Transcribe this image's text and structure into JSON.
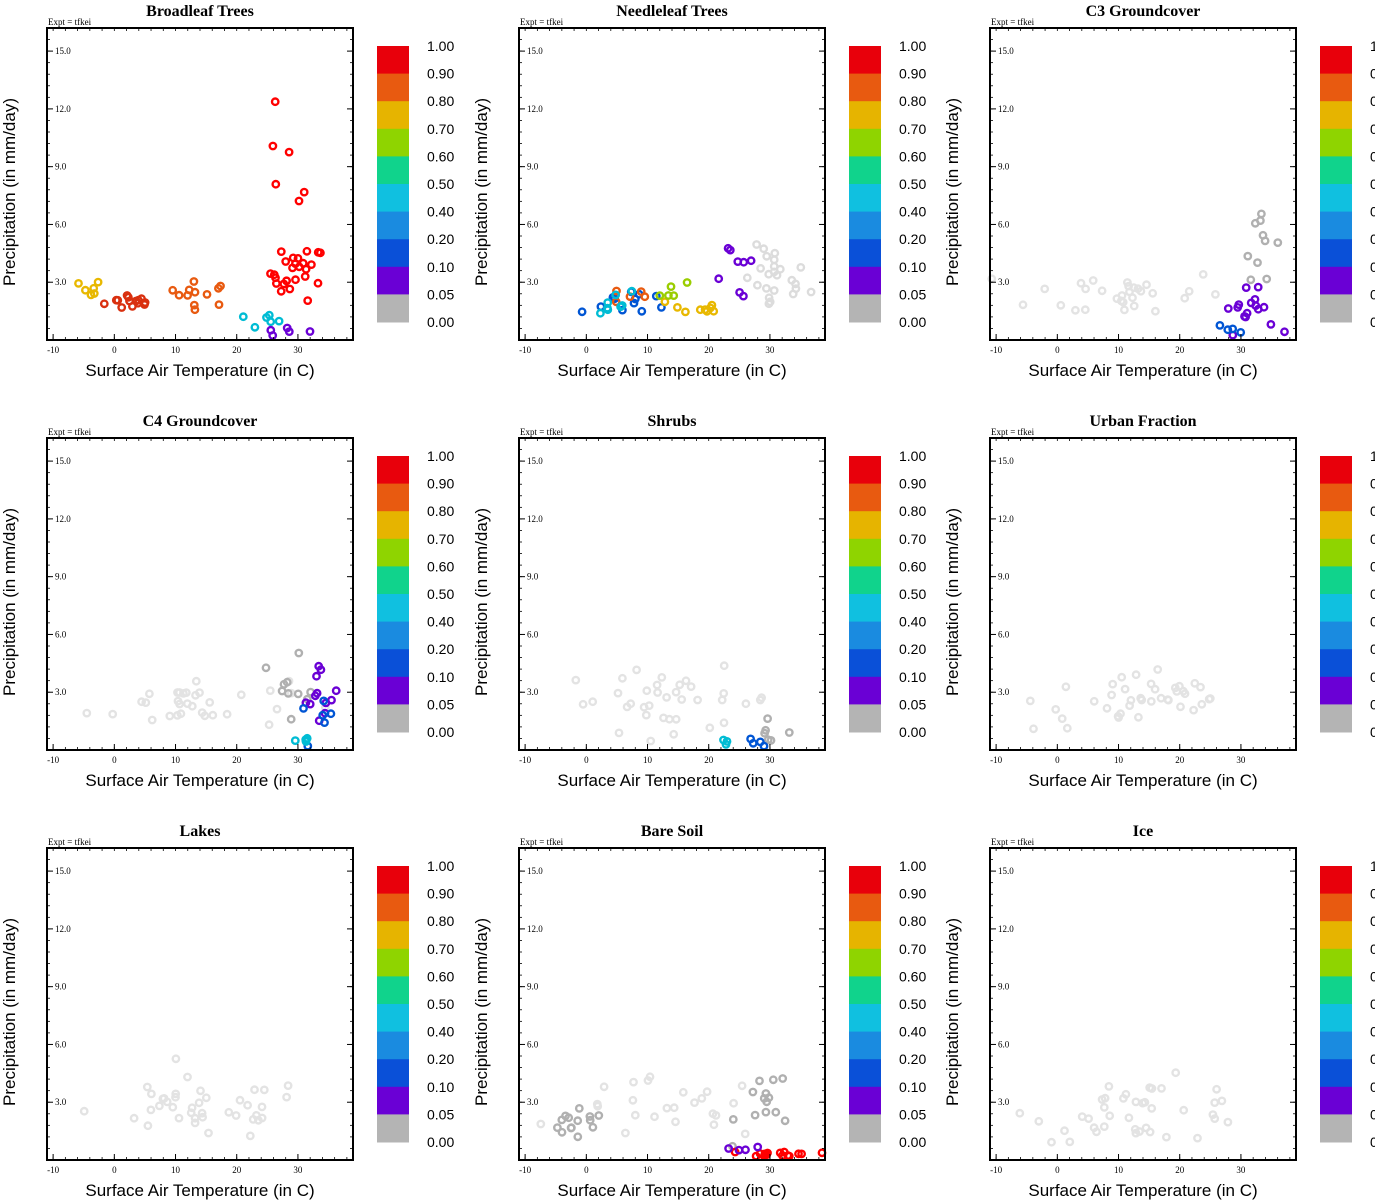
{
  "chart_data": [
    {
      "type": "scatter",
      "title": "Broadleaf Trees",
      "expt": "Expt = tfkei",
      "xlabel": "Surface Air Temperature (in C)",
      "ylabel": "Precipitation (in mm/day)",
      "xlim": [
        -11,
        39
      ],
      "ylim": [
        0,
        16.2
      ],
      "xticks": [
        "-10",
        "0",
        "10",
        "20",
        "30"
      ],
      "yticks": [
        "3.0",
        "6.0",
        "9.0",
        "12.0",
        "15.0"
      ],
      "clusters": [
        {
          "color": "#d9300f",
          "count": 14,
          "center": [
            3,
            2.0
          ],
          "spread": [
            5,
            0.5
          ]
        },
        {
          "color": "#e85a10",
          "count": 12,
          "center": [
            14,
            2.4
          ],
          "spread": [
            6,
            0.7
          ]
        },
        {
          "color": "#ff0000",
          "count": 26,
          "center": [
            30,
            3.5
          ],
          "spread": [
            5,
            1.6
          ]
        },
        {
          "color": "#e8b800",
          "count": 6,
          "center": [
            -4,
            2.6
          ],
          "spread": [
            2,
            0.6
          ]
        },
        {
          "color": "#00bcd4",
          "count": 6,
          "center": [
            23,
            1.0
          ],
          "spread": [
            6,
            0.5
          ]
        },
        {
          "color": "#6a00d5",
          "count": 5,
          "center": [
            28,
            0.4
          ],
          "spread": [
            5,
            0.3
          ]
        },
        {
          "color": "#ff0000",
          "count": 6,
          "center": [
            28,
            9
          ],
          "spread": [
            6,
            3
          ]
        }
      ]
    },
    {
      "type": "scatter",
      "title": "Needleleaf Trees",
      "expt": "Expt = tfkei",
      "xlabel": "Surface Air Temperature (in C)",
      "ylabel": "Precipitation (in mm/day)",
      "xlim": [
        -11,
        39
      ],
      "ylim": [
        0,
        16.2
      ],
      "xticks": [
        "-10",
        "0",
        "10",
        "20",
        "30"
      ],
      "yticks": [
        "3.0",
        "6.0",
        "9.0",
        "12.0",
        "15.0"
      ],
      "clusters": [
        {
          "color": "#dcdcdc",
          "count": 24,
          "center": [
            31,
            3.0
          ],
          "spread": [
            6,
            2.0
          ]
        },
        {
          "color": "#0055d4",
          "count": 12,
          "center": [
            7,
            2.0
          ],
          "spread": [
            9,
            0.8
          ]
        },
        {
          "color": "#e85a10",
          "count": 5,
          "center": [
            7,
            2.3
          ],
          "spread": [
            3,
            0.5
          ]
        },
        {
          "color": "#e8b800",
          "count": 9,
          "center": [
            18,
            1.6
          ],
          "spread": [
            5,
            0.8
          ]
        },
        {
          "color": "#00bcd4",
          "count": 8,
          "center": [
            2,
            2.0
          ],
          "spread": [
            8,
            0.8
          ]
        },
        {
          "color": "#6a00d5",
          "count": 8,
          "center": [
            24,
            3.5
          ],
          "spread": [
            5,
            2.5
          ]
        },
        {
          "color": "#9acd00",
          "count": 5,
          "center": [
            14,
            2.8
          ],
          "spread": [
            5,
            1.0
          ]
        }
      ]
    },
    {
      "type": "scatter",
      "title": "C3 Groundcover",
      "expt": "Expt = tfkei",
      "xlabel": "Surface Air Temperature (in C)",
      "ylabel": "Precipitation (in mm/day)",
      "xlim": [
        -11,
        39
      ],
      "ylim": [
        0,
        16.2
      ],
      "xticks": [
        "-10",
        "0",
        "10",
        "20",
        "30"
      ],
      "yticks": [
        "3.0",
        "6.0",
        "9.0",
        "12.0",
        "15.0"
      ],
      "clusters": [
        {
          "color": "#e3e3e3",
          "count": 30,
          "center": [
            12,
            2.4
          ],
          "spread": [
            18,
            1.5
          ]
        },
        {
          "color": "#b0b0b0",
          "count": 10,
          "center": [
            33,
            5.5
          ],
          "spread": [
            3,
            2.5
          ]
        },
        {
          "color": "#6a00d5",
          "count": 16,
          "center": [
            31,
            1.5
          ],
          "spread": [
            5,
            1.2
          ]
        },
        {
          "color": "#0055d4",
          "count": 4,
          "center": [
            29,
            0.6
          ],
          "spread": [
            3,
            0.3
          ]
        }
      ]
    },
    {
      "type": "scatter",
      "title": "C4 Groundcover",
      "expt": "Expt = tfkei",
      "xlabel": "Surface Air Temperature (in C)",
      "ylabel": "Precipitation (in mm/day)",
      "xlim": [
        -11,
        39
      ],
      "ylim": [
        0,
        16.2
      ],
      "xticks": [
        "-10",
        "0",
        "10",
        "20",
        "30"
      ],
      "yticks": [
        "3.0",
        "6.0",
        "9.0",
        "12.0",
        "15.0"
      ],
      "clusters": [
        {
          "color": "#e3e3e3",
          "count": 32,
          "center": [
            12,
            2.4
          ],
          "spread": [
            18,
            1.5
          ]
        },
        {
          "color": "#b0b0b0",
          "count": 10,
          "center": [
            30,
            4.0
          ],
          "spread": [
            4,
            2.5
          ]
        },
        {
          "color": "#6a00d5",
          "count": 12,
          "center": [
            34,
            2.8
          ],
          "spread": [
            3,
            2.0
          ]
        },
        {
          "color": "#0055d4",
          "count": 6,
          "center": [
            33,
            1.5
          ],
          "spread": [
            3,
            1.0
          ]
        },
        {
          "color": "#00bcd4",
          "count": 4,
          "center": [
            31,
            0.5
          ],
          "spread": [
            3,
            0.3
          ]
        }
      ]
    },
    {
      "type": "scatter",
      "title": "Shrubs",
      "expt": "Expt = tfkei",
      "xlabel": "Surface Air Temperature (in C)",
      "ylabel": "Precipitation (in mm/day)",
      "xlim": [
        -11,
        39
      ],
      "ylim": [
        0,
        16.2
      ],
      "xticks": [
        "-10",
        "0",
        "10",
        "20",
        "30"
      ],
      "yticks": [
        "3.0",
        "6.0",
        "9.0",
        "12.0",
        "15.0"
      ],
      "clusters": [
        {
          "color": "#e3e3e3",
          "count": 36,
          "center": [
            14,
            2.6
          ],
          "spread": [
            20,
            1.8
          ]
        },
        {
          "color": "#b0b0b0",
          "count": 6,
          "center": [
            29,
            1.0
          ],
          "spread": [
            5,
            0.6
          ]
        },
        {
          "color": "#0055d4",
          "count": 4,
          "center": [
            26,
            0.4
          ],
          "spread": [
            3,
            0.2
          ]
        },
        {
          "color": "#00bcd4",
          "count": 3,
          "center": [
            24,
            0.4
          ],
          "spread": [
            3,
            0.2
          ]
        }
      ]
    },
    {
      "type": "scatter",
      "title": "Urban Fraction",
      "expt": "Expt = tfkei",
      "xlabel": "Surface Air Temperature (in C)",
      "ylabel": "Precipitation (in mm/day)",
      "xlim": [
        -11,
        39
      ],
      "ylim": [
        0,
        16.2
      ],
      "xticks": [
        "-10",
        "0",
        "10",
        "20",
        "30"
      ],
      "yticks": [
        "3.0",
        "6.0",
        "9.0",
        "12.0",
        "15.0"
      ],
      "clusters": [
        {
          "color": "#e3e3e3",
          "count": 40,
          "center": [
            14,
            2.6
          ],
          "spread": [
            20,
            1.8
          ]
        }
      ]
    },
    {
      "type": "scatter",
      "title": "Lakes",
      "expt": "Expt = tfkei",
      "xlabel": "Surface Air Temperature (in C)",
      "ylabel": "Precipitation (in mm/day)",
      "xlim": [
        -11,
        39
      ],
      "ylim": [
        0,
        16.2
      ],
      "xticks": [
        "-10",
        "0",
        "10",
        "20",
        "30"
      ],
      "yticks": [
        "3.0",
        "6.0",
        "9.0",
        "12.0",
        "15.0"
      ],
      "clusters": [
        {
          "color": "#e3e3e3",
          "count": 40,
          "center": [
            14,
            2.6
          ],
          "spread": [
            20,
            1.8
          ]
        }
      ]
    },
    {
      "type": "scatter",
      "title": "Bare Soil",
      "expt": "Expt = tfkei",
      "xlabel": "Surface Air Temperature (in C)",
      "ylabel": "Precipitation (in mm/day)",
      "xlim": [
        -11,
        39
      ],
      "ylim": [
        0,
        16.2
      ],
      "xticks": [
        "-10",
        "0",
        "10",
        "20",
        "30"
      ],
      "yticks": [
        "3.0",
        "6.0",
        "9.0",
        "12.0",
        "15.0"
      ],
      "clusters": [
        {
          "color": "#e3e3e3",
          "count": 24,
          "center": [
            14,
            2.6
          ],
          "spread": [
            18,
            1.8
          ]
        },
        {
          "color": "#b0b0b0",
          "count": 14,
          "center": [
            -2,
            1.8
          ],
          "spread": [
            6,
            0.8
          ]
        },
        {
          "color": "#b0b0b0",
          "count": 14,
          "center": [
            30,
            3.0
          ],
          "spread": [
            6,
            2.0
          ]
        },
        {
          "color": "#ff0000",
          "count": 16,
          "center": [
            32,
            0.3
          ],
          "spread": [
            6,
            0.25
          ]
        },
        {
          "color": "#6a00d5",
          "count": 4,
          "center": [
            26,
            0.5
          ],
          "spread": [
            4,
            0.2
          ]
        }
      ]
    },
    {
      "type": "scatter",
      "title": "Ice",
      "expt": "Expt = tfkei",
      "xlabel": "Surface Air Temperature (in C)",
      "ylabel": "Precipitation (in mm/day)",
      "xlim": [
        -11,
        39
      ],
      "ylim": [
        0,
        16.2
      ],
      "xticks": [
        "-10",
        "0",
        "10",
        "20",
        "30"
      ],
      "yticks": [
        "3.0",
        "6.0",
        "9.0",
        "12.0",
        "15.0"
      ],
      "clusters": [
        {
          "color": "#e3e3e3",
          "count": 40,
          "center": [
            14,
            2.6
          ],
          "spread": [
            20,
            1.8
          ]
        }
      ]
    }
  ],
  "colorbar": {
    "labels": [
      "1.00",
      "0.90",
      "0.80",
      "0.70",
      "0.60",
      "0.50",
      "0.40",
      "0.20",
      "0.10",
      "0.05",
      "0.00"
    ],
    "colors": [
      "#e8000b",
      "#e85a10",
      "#e6b400",
      "#8fd400",
      "#10d38c",
      "#10c0e0",
      "#1a8be0",
      "#0a50d8",
      "#6a00d5",
      "#b4b4b4"
    ]
  }
}
